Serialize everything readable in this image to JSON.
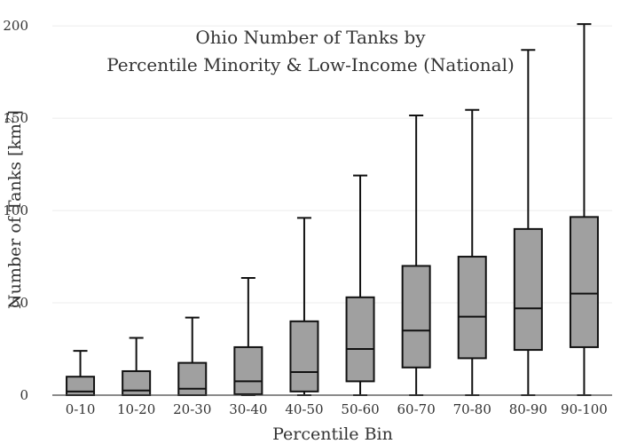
{
  "chart_data": {
    "type": "box",
    "title_line1": "Ohio Number of Tanks by",
    "title_line2": "Percentile Minority & Low-Income (National)",
    "xlabel": "Percentile Bin",
    "ylabel_main": "Number of Tanks  [km",
    "ylabel_sup": "2",
    "ylabel_end": "]",
    "ylim": [
      0,
      202
    ],
    "yticks": [
      0,
      50,
      100,
      150,
      200
    ],
    "grid": true,
    "box_color": "#a0a0a0",
    "line_color": "#111111",
    "categories": [
      "0-10",
      "10-20",
      "20-30",
      "30-40",
      "40-50",
      "50-60",
      "60-70",
      "70-80",
      "80-90",
      "90-100"
    ],
    "boxes": [
      {
        "min": 0,
        "q1": 0,
        "median": 2,
        "q3": 10,
        "max": 24
      },
      {
        "min": 0,
        "q1": 0,
        "median": 2.5,
        "q3": 13,
        "max": 31
      },
      {
        "min": 0,
        "q1": 0,
        "median": 3.5,
        "q3": 17.5,
        "max": 42
      },
      {
        "min": 0,
        "q1": 0.5,
        "median": 7.5,
        "q3": 26,
        "max": 63.5
      },
      {
        "min": 0,
        "q1": 2,
        "median": 12.5,
        "q3": 40,
        "max": 96
      },
      {
        "min": 0,
        "q1": 7.5,
        "median": 25,
        "q3": 53,
        "max": 119
      },
      {
        "min": 0,
        "q1": 15,
        "median": 35,
        "q3": 70,
        "max": 151.5
      },
      {
        "min": 0,
        "q1": 20,
        "median": 42.5,
        "q3": 75,
        "max": 154.5
      },
      {
        "min": 0,
        "q1": 24.5,
        "median": 47,
        "q3": 90,
        "max": 187
      },
      {
        "min": 0,
        "q1": 26,
        "median": 55,
        "q3": 96.5,
        "max": 201
      }
    ]
  }
}
